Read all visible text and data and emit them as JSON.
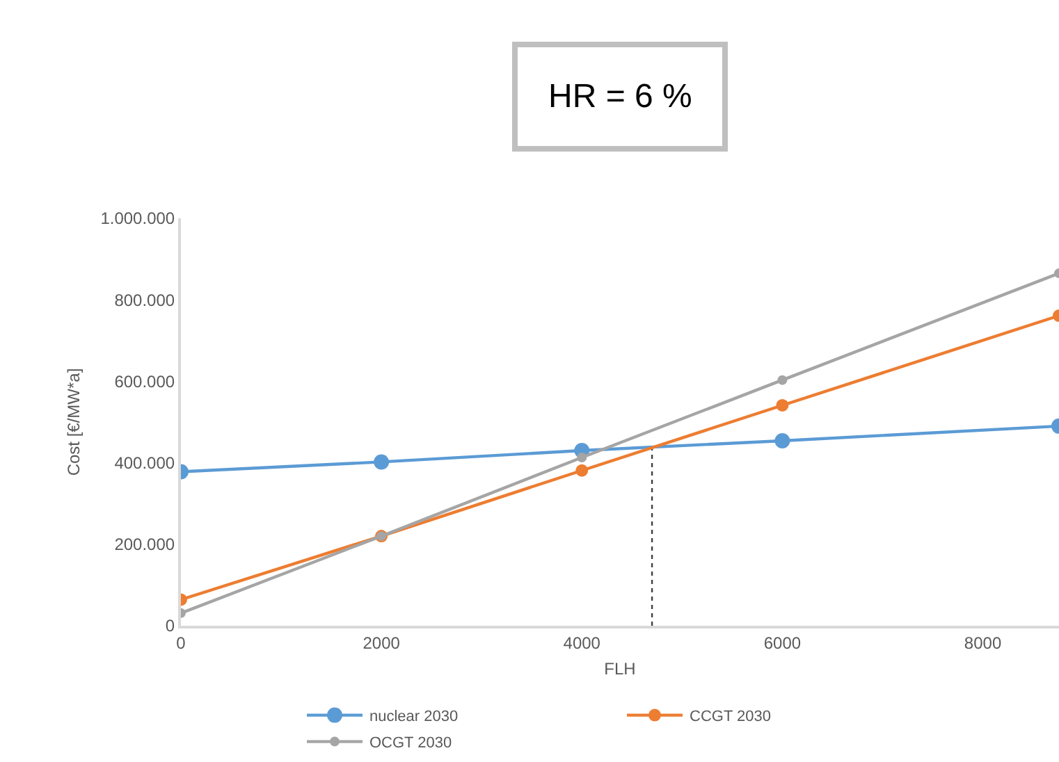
{
  "chart_data": {
    "type": "line",
    "title": "HR = 6 %",
    "xlabel": "FLH",
    "ylabel": "Cost [€/MW*a]",
    "x": [
      0,
      2000,
      4000,
      6000,
      8760
    ],
    "series": [
      {
        "name": "nuclear 2030",
        "color": "#5b9bd5",
        "values": [
          378000,
          402000,
          430000,
          454000,
          490000
        ]
      },
      {
        "name": "CCGT 2030",
        "color": "#ed7d31",
        "values": [
          64000,
          220000,
          381000,
          541000,
          761000
        ]
      },
      {
        "name": "OCGT 2030",
        "color": "#a5a5a5",
        "values": [
          31000,
          220000,
          413000,
          603000,
          865000
        ]
      }
    ],
    "xlim": [
      0,
      8760
    ],
    "xticks": [
      0,
      2000,
      4000,
      6000,
      8000
    ],
    "ylim": [
      0,
      1000000
    ],
    "yticks": [
      0,
      {
        "value": 200000,
        "label": "200.000"
      },
      {
        "value": 400000,
        "label": "400.000"
      },
      {
        "value": 600000,
        "label": "600.000"
      },
      {
        "value": 800000,
        "label": "800.000"
      },
      {
        "value": 1000000,
        "label": "1.000.000"
      }
    ],
    "ref_lines": [
      {
        "axis": "x",
        "value": 4700,
        "color": "#404040",
        "line_style": "dotted"
      }
    ],
    "grid": false,
    "legend": "bottom",
    "marker": "circle",
    "line_style": "solid"
  }
}
